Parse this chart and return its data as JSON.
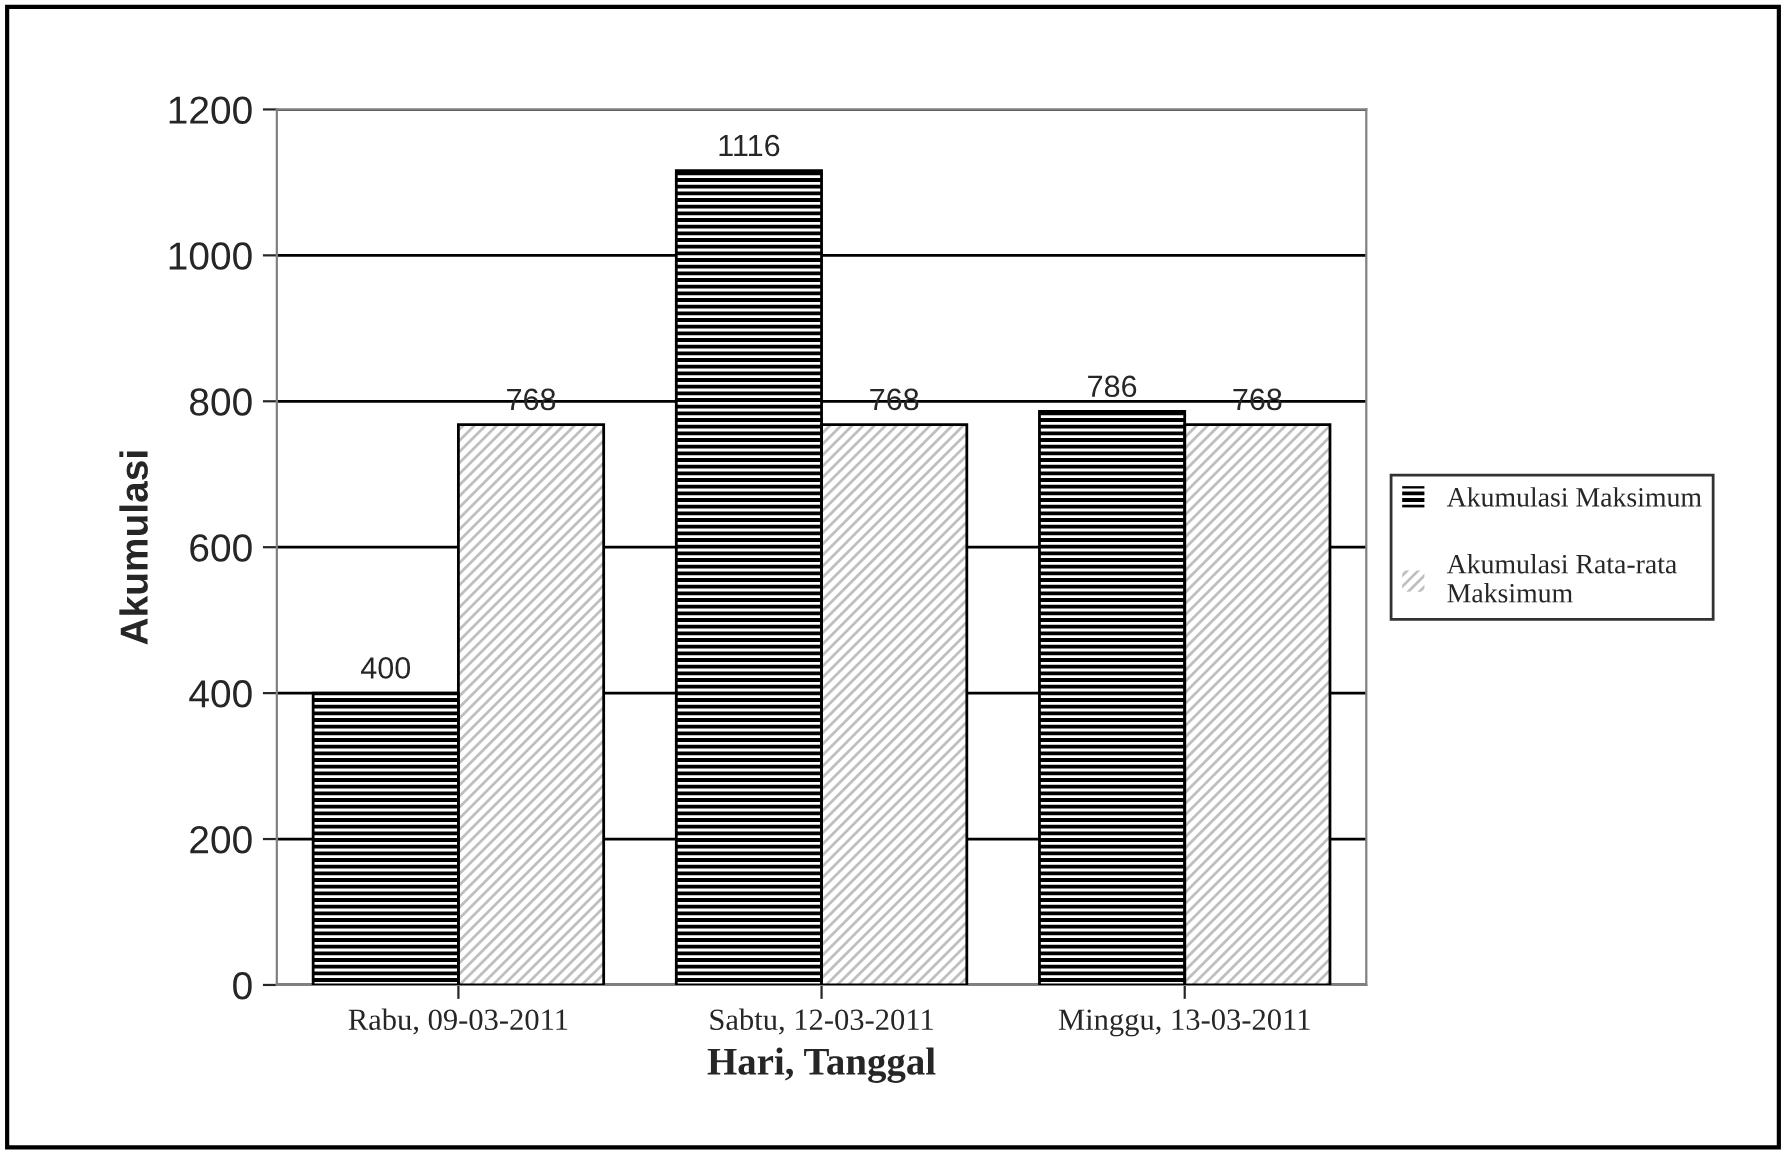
{
  "chart_data": {
    "type": "bar",
    "xlabel": "Hari, Tanggal",
    "ylabel": "Akumulasi",
    "categories": [
      "Rabu, 09-03-2011",
      "Sabtu, 12-03-2011",
      "Minggu, 13-03-2011"
    ],
    "series": [
      {
        "name": "Akumulasi Maksimum",
        "color": "#000000",
        "values": [
          400,
          1116,
          786
        ]
      },
      {
        "name": "Akumulasi Rata-rata\nMaksimum",
        "color": "#bfbfbf",
        "values": [
          768,
          768,
          768
        ]
      }
    ],
    "ylim": [
      0,
      1200
    ],
    "yticks": [
      0,
      200,
      400,
      600,
      800,
      1000,
      1200
    ],
    "grid": "y",
    "legend": "right",
    "data_labels": true
  }
}
